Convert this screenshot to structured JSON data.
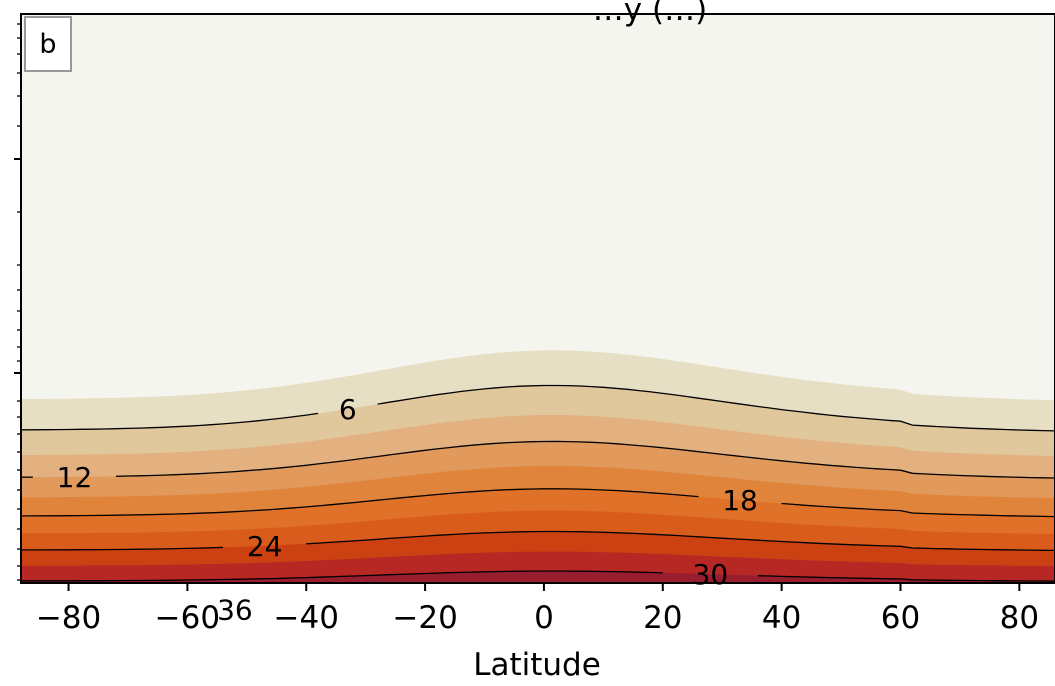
{
  "chart_data": {
    "type": "heatmap",
    "title": "…y (…)",
    "panel_label": "b",
    "xlabel": "Latitude",
    "xlim": [
      -88,
      86
    ],
    "x_ticks": [
      -80,
      -60,
      -40,
      -20,
      0,
      20,
      40,
      60,
      80
    ],
    "x_tick_labels": [
      "−80",
      "−60",
      "−40",
      "−20",
      "0",
      "20",
      "40",
      "60",
      "80"
    ],
    "fill_levels": [
      0,
      3,
      6,
      9,
      12,
      15,
      18,
      21,
      24,
      27,
      30,
      33,
      36
    ],
    "fill_colors": [
      "#f5f5ef",
      "#e7dfc4",
      "#e0c89c",
      "#e3b07f",
      "#e19a5c",
      "#e1843b",
      "#e07128",
      "#d95c1d",
      "#cc4112",
      "#b72825",
      "#981d2f",
      "#7f1b34",
      "#5e1730"
    ],
    "contour_levels": [
      6,
      12,
      18,
      24,
      30,
      36
    ],
    "contour_labels": [
      {
        "text": "6",
        "level": 6,
        "x": -33
      },
      {
        "text": "12",
        "level": 12,
        "x": -79
      },
      {
        "text": "18",
        "level": 18,
        "x": 33
      },
      {
        "text": "24",
        "level": 24,
        "x": -47
      },
      {
        "text": "30",
        "level": 30,
        "x": 28
      },
      {
        "text": "36",
        "level": 36,
        "x": -52
      }
    ],
    "grid": false
  }
}
